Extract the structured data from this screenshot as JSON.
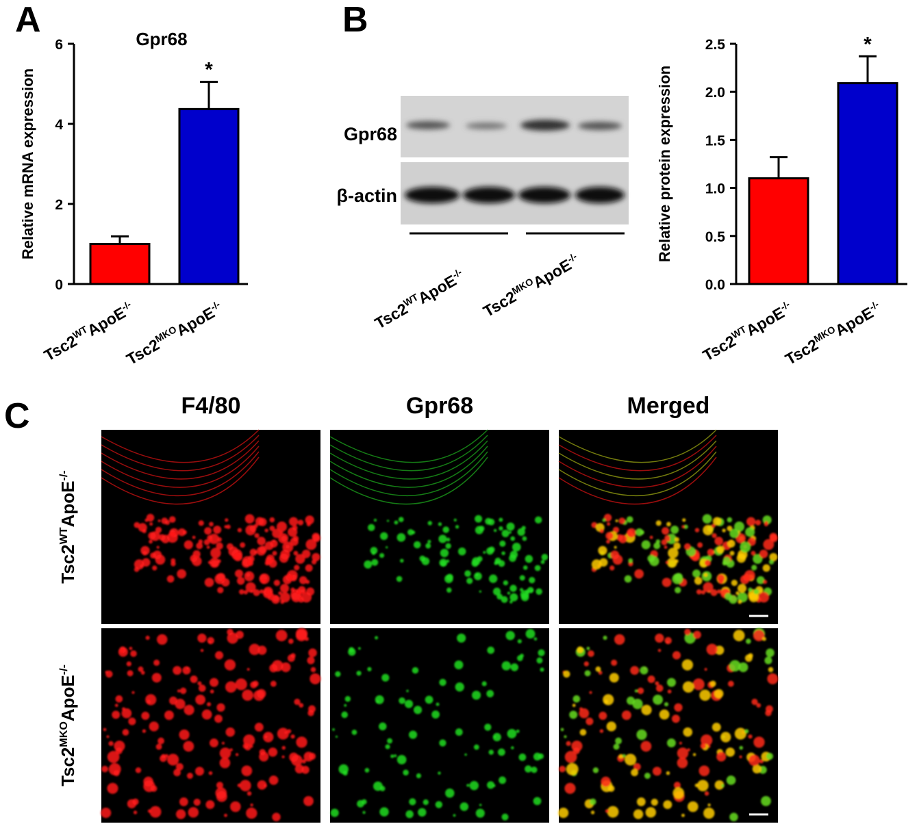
{
  "panel_labels": [
    "A",
    "B",
    "C"
  ],
  "chart_data": [
    {
      "type": "bar",
      "title": "Gpr68",
      "y_label": "Relative mRNA expression",
      "categories": [
        [
          "Tsc2",
          "WT",
          "ApoE",
          "-/-"
        ],
        [
          "Tsc2",
          "MKO",
          "ApoE",
          "-/-"
        ]
      ],
      "values": [
        1.0,
        4.37
      ],
      "errors": [
        0.19,
        0.68
      ],
      "colors": [
        "#ff0000",
        "#0000cc"
      ],
      "annotations": [
        {
          "index": 1,
          "text": "*"
        }
      ],
      "ylim": [
        0,
        6
      ],
      "yticks": [
        0,
        2,
        4,
        6
      ]
    },
    {
      "type": "bar",
      "y_label": "Relative protein expression",
      "categories": [
        [
          "Tsc2",
          "WT",
          "ApoE",
          "-/-"
        ],
        [
          "Tsc2",
          "MKO",
          "ApoE",
          "-/-"
        ]
      ],
      "values": [
        1.1,
        2.09
      ],
      "errors": [
        0.22,
        0.28
      ],
      "colors": [
        "#ff0000",
        "#0000cc"
      ],
      "annotations": [
        {
          "index": 1,
          "text": "*"
        }
      ],
      "ylim": [
        0,
        2.5
      ],
      "yticks": [
        {
          "value": 0,
          "label": "0.0"
        },
        0.5,
        {
          "value": 1,
          "label": "1.0"
        },
        1.5,
        {
          "value": 2,
          "label": "2.0"
        },
        2.5
      ]
    }
  ],
  "blot": {
    "bands": [
      "Gpr68",
      "β-actin"
    ],
    "groups": [
      [
        "Tsc2",
        "WT",
        "ApoE",
        "-/-"
      ],
      [
        "Tsc2",
        "MKO",
        "ApoE",
        "-/-"
      ]
    ]
  },
  "microscopy": {
    "columns": [
      {
        "label": "F4/80",
        "color": "#ff2222"
      },
      {
        "label": "Gpr68",
        "color": "#22ee22"
      },
      {
        "label": "Merged",
        "color": "#000000"
      }
    ],
    "rows": [
      [
        "Tsc2",
        "WT",
        "ApoE",
        "-/-"
      ],
      [
        "Tsc2",
        "MKO",
        "ApoE",
        "-/-"
      ]
    ]
  }
}
